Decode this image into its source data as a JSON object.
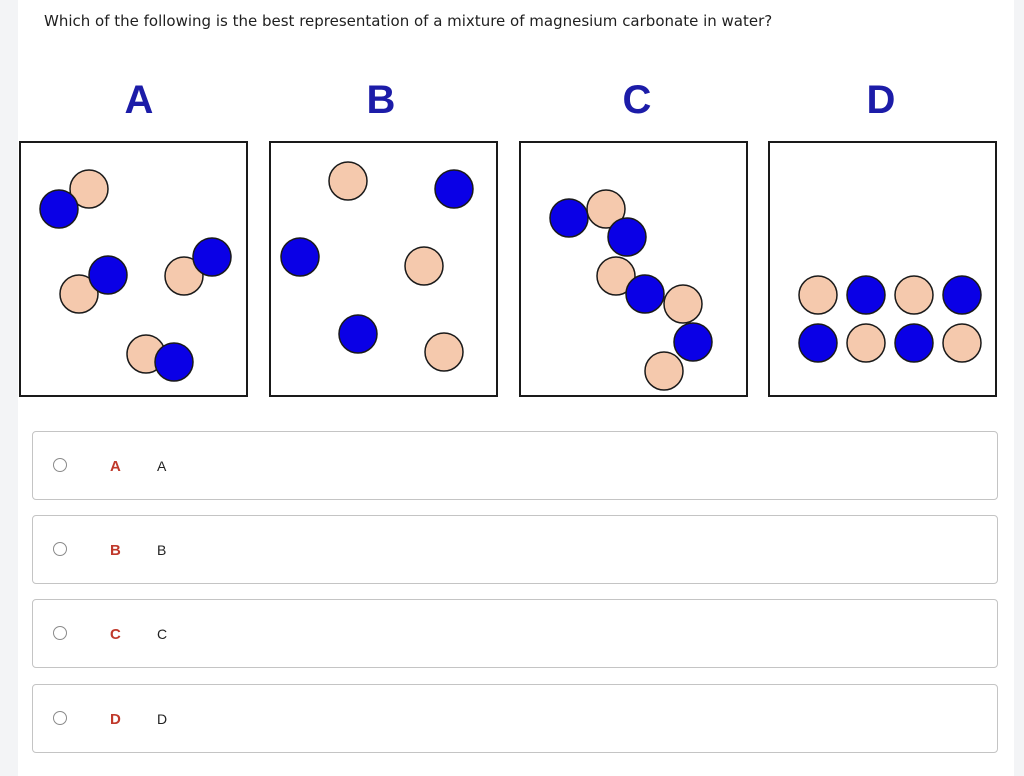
{
  "question": "Which of the following is the best representation of a mixture of magnesium carbonate in water?",
  "colors": {
    "blue": "#0a00e6",
    "peach": "#f5c9ad",
    "stroke": "#1a1a1a",
    "label_blue": "#1c1ca8",
    "option_letter": "#c0392b"
  },
  "panels": [
    {
      "label": "A"
    },
    {
      "label": "B"
    },
    {
      "label": "C"
    },
    {
      "label": "D"
    }
  ],
  "options": [
    {
      "letter": "A",
      "text": "A"
    },
    {
      "letter": "B",
      "text": "B"
    },
    {
      "letter": "C",
      "text": "C"
    },
    {
      "letter": "D",
      "text": "D"
    }
  ]
}
